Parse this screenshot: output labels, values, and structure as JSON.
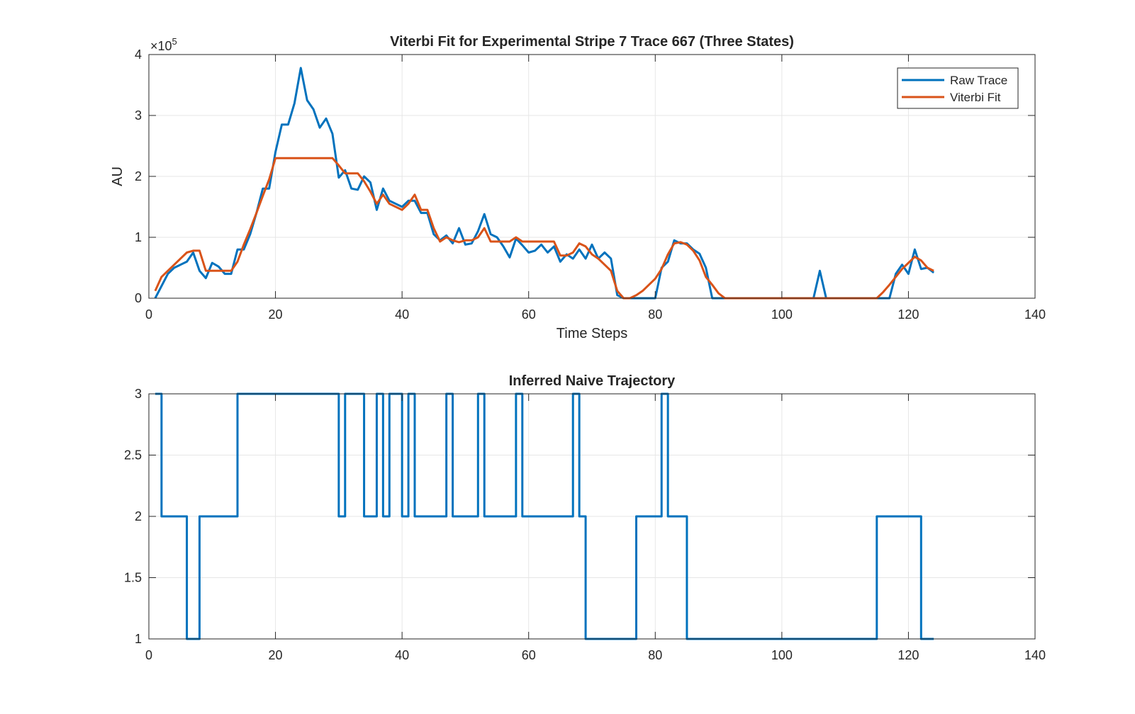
{
  "chart_data": [
    {
      "type": "line",
      "title": "Viterbi Fit for Experimental Stripe 7 Trace 667 (Three States)",
      "xlabel": "Time Steps",
      "ylabel": "AU",
      "exponent_label": "×10",
      "exponent_power": "5",
      "xlim": [
        0,
        140
      ],
      "ylim": [
        0,
        4
      ],
      "xticks": [
        0,
        20,
        40,
        60,
        80,
        100,
        120,
        140
      ],
      "yticks": [
        0,
        1,
        2,
        3,
        4
      ],
      "xtick_labels": [
        "0",
        "20",
        "40",
        "60",
        "80",
        "100",
        "120",
        "140"
      ],
      "ytick_labels": [
        "0",
        "1",
        "2",
        "3",
        "4"
      ],
      "grid": true,
      "legend_position": "top-right",
      "series": [
        {
          "name": "Raw Trace",
          "color": "#0072BD",
          "x": [
            1,
            2,
            3,
            4,
            5,
            6,
            7,
            8,
            9,
            10,
            11,
            12,
            13,
            14,
            15,
            16,
            17,
            18,
            19,
            20,
            21,
            22,
            23,
            24,
            25,
            26,
            27,
            28,
            29,
            30,
            31,
            32,
            33,
            34,
            35,
            36,
            37,
            38,
            39,
            40,
            41,
            42,
            43,
            44,
            45,
            46,
            47,
            48,
            49,
            50,
            51,
            52,
            53,
            54,
            55,
            56,
            57,
            58,
            59,
            60,
            61,
            62,
            63,
            64,
            65,
            66,
            67,
            68,
            69,
            70,
            71,
            72,
            73,
            74,
            75,
            76,
            77,
            78,
            79,
            80,
            81,
            82,
            83,
            84,
            85,
            86,
            87,
            88,
            89,
            90,
            91,
            92,
            93,
            94,
            95,
            96,
            97,
            98,
            99,
            100,
            101,
            102,
            103,
            104,
            105,
            106,
            107,
            108,
            109,
            110,
            111,
            112,
            113,
            114,
            115,
            116,
            117,
            118,
            119,
            120,
            121,
            122,
            123,
            124
          ],
          "values": [
            0,
            0.2,
            0.4,
            0.5,
            0.55,
            0.6,
            0.75,
            0.45,
            0.33,
            0.58,
            0.52,
            0.4,
            0.4,
            0.8,
            0.8,
            1.05,
            1.4,
            1.8,
            1.8,
            2.4,
            2.85,
            2.85,
            3.2,
            3.78,
            3.25,
            3.1,
            2.8,
            2.95,
            2.7,
            1.98,
            2.1,
            1.8,
            1.78,
            2.0,
            1.9,
            1.45,
            1.8,
            1.6,
            1.55,
            1.5,
            1.6,
            1.6,
            1.4,
            1.4,
            1.05,
            0.95,
            1.03,
            0.9,
            1.15,
            0.88,
            0.9,
            1.1,
            1.38,
            1.05,
            1.0,
            0.85,
            0.67,
            0.98,
            0.87,
            0.75,
            0.78,
            0.88,
            0.75,
            0.85,
            0.6,
            0.72,
            0.65,
            0.8,
            0.65,
            0.88,
            0.65,
            0.75,
            0.65,
            0.05,
            0,
            0,
            0,
            0,
            0,
            0,
            0.5,
            0.6,
            0.95,
            0.9,
            0.9,
            0.8,
            0.73,
            0.5,
            0,
            0,
            0,
            0,
            0,
            0,
            0,
            0,
            0,
            0,
            0,
            0,
            0,
            0,
            0,
            0,
            0,
            0.45,
            0,
            0,
            0,
            0,
            0,
            0,
            0,
            0,
            0,
            0,
            0,
            0.4,
            0.55,
            0.4,
            0.8,
            0.48,
            0.5,
            0.42
          ]
        },
        {
          "name": "Viterbi Fit",
          "color": "#D95319",
          "x": [
            1,
            2,
            3,
            4,
            5,
            6,
            7,
            8,
            9,
            10,
            11,
            12,
            13,
            14,
            15,
            16,
            17,
            18,
            19,
            20,
            21,
            22,
            23,
            24,
            25,
            26,
            27,
            28,
            29,
            30,
            31,
            32,
            33,
            34,
            35,
            36,
            37,
            38,
            39,
            40,
            41,
            42,
            43,
            44,
            45,
            46,
            47,
            48,
            49,
            50,
            51,
            52,
            53,
            54,
            55,
            56,
            57,
            58,
            59,
            60,
            61,
            62,
            63,
            64,
            65,
            66,
            67,
            68,
            69,
            70,
            71,
            72,
            73,
            74,
            75,
            76,
            77,
            78,
            79,
            80,
            81,
            82,
            83,
            84,
            85,
            86,
            87,
            88,
            89,
            90,
            91,
            92,
            93,
            94,
            95,
            96,
            97,
            98,
            99,
            100,
            101,
            102,
            103,
            104,
            105,
            106,
            107,
            108,
            109,
            110,
            111,
            112,
            113,
            114,
            115,
            116,
            117,
            118,
            119,
            120,
            121,
            122,
            123,
            124
          ],
          "values": [
            0.12,
            0.35,
            0.45,
            0.55,
            0.65,
            0.75,
            0.78,
            0.78,
            0.45,
            0.45,
            0.45,
            0.45,
            0.45,
            0.6,
            0.88,
            1.13,
            1.4,
            1.68,
            1.95,
            2.3,
            2.3,
            2.3,
            2.3,
            2.3,
            2.3,
            2.3,
            2.3,
            2.3,
            2.3,
            2.18,
            2.05,
            2.05,
            2.05,
            1.92,
            1.75,
            1.55,
            1.7,
            1.55,
            1.5,
            1.45,
            1.55,
            1.7,
            1.45,
            1.45,
            1.15,
            0.93,
            1.0,
            0.95,
            0.92,
            0.95,
            0.95,
            1.0,
            1.15,
            0.93,
            0.93,
            0.93,
            0.93,
            1.0,
            0.93,
            0.93,
            0.93,
            0.93,
            0.93,
            0.93,
            0.7,
            0.7,
            0.75,
            0.9,
            0.85,
            0.72,
            0.65,
            0.55,
            0.45,
            0.12,
            0,
            0,
            0.05,
            0.12,
            0.22,
            0.32,
            0.48,
            0.72,
            0.9,
            0.92,
            0.88,
            0.78,
            0.62,
            0.35,
            0.22,
            0.08,
            0,
            0,
            0,
            0,
            0,
            0,
            0,
            0,
            0,
            0,
            0,
            0,
            0,
            0,
            0,
            0,
            0,
            0,
            0,
            0,
            0,
            0,
            0,
            0,
            0,
            0.1,
            0.22,
            0.35,
            0.48,
            0.58,
            0.68,
            0.62,
            0.5,
            0.45
          ]
        }
      ]
    },
    {
      "type": "line",
      "title": "Inferred Naive Trajectory",
      "xlim": [
        0,
        140
      ],
      "ylim": [
        1,
        3
      ],
      "xticks": [
        0,
        20,
        40,
        60,
        80,
        100,
        120,
        140
      ],
      "yticks": [
        1,
        1.5,
        2,
        2.5,
        3
      ],
      "xtick_labels": [
        "0",
        "20",
        "40",
        "60",
        "80",
        "100",
        "120",
        "140"
      ],
      "ytick_labels": [
        "1",
        "1.5",
        "2",
        "2.5",
        "3"
      ],
      "grid": true,
      "series": [
        {
          "color": "#0072BD",
          "step": true,
          "x": [
            1,
            2,
            6,
            8,
            14,
            30,
            31,
            34,
            36,
            37,
            38,
            40,
            41,
            42,
            47,
            48,
            52,
            53,
            58,
            59,
            67,
            68,
            69,
            77,
            81,
            82,
            85,
            115,
            122,
            124
          ],
          "values": [
            3,
            2,
            1,
            2,
            3,
            2,
            3,
            2,
            3,
            2,
            3,
            2,
            3,
            2,
            3,
            2,
            3,
            2,
            3,
            2,
            3,
            2,
            1,
            2,
            3,
            2,
            1,
            2,
            1,
            1
          ]
        }
      ]
    }
  ]
}
